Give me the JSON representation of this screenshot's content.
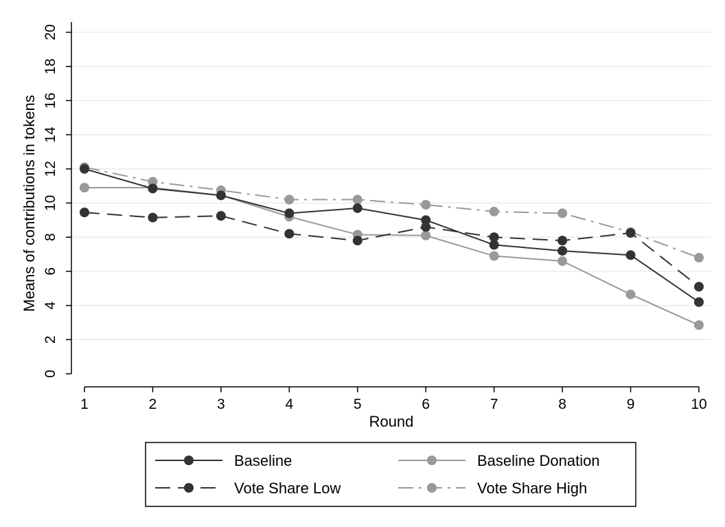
{
  "chart_data": {
    "type": "line",
    "xlabel": "Round",
    "ylabel": "Means of contributions in tokens",
    "x": [
      1,
      2,
      3,
      4,
      5,
      6,
      7,
      8,
      9,
      10
    ],
    "x_ticks": [
      "1",
      "2",
      "3",
      "4",
      "5",
      "6",
      "7",
      "8",
      "9",
      "10"
    ],
    "y_ticks": [
      "0",
      "2",
      "4",
      "6",
      "8",
      "10",
      "12",
      "14",
      "16",
      "18",
      "20"
    ],
    "ylim": [
      0,
      20
    ],
    "xlim": [
      1,
      10
    ],
    "grid": true,
    "legend_position": "bottom",
    "series": [
      {
        "name": "Baseline",
        "color": "#333333",
        "dash": "solid",
        "values": [
          12.0,
          10.85,
          10.45,
          9.4,
          9.7,
          9.0,
          7.55,
          7.2,
          6.95,
          4.2
        ]
      },
      {
        "name": "Baseline Donation",
        "color": "#999999",
        "dash": "solid",
        "values": [
          10.9,
          10.9,
          10.45,
          9.2,
          8.15,
          8.1,
          6.9,
          6.6,
          4.65,
          2.85
        ]
      },
      {
        "name": "Vote Share Low",
        "color": "#333333",
        "dash": "dashed",
        "values": [
          9.45,
          9.15,
          9.25,
          8.2,
          7.8,
          8.6,
          8.0,
          7.8,
          8.25,
          5.1
        ]
      },
      {
        "name": "Vote Share High",
        "color": "#999999",
        "dash": "dashdot",
        "values": [
          12.1,
          11.25,
          10.75,
          10.2,
          10.2,
          9.9,
          9.5,
          9.4,
          8.3,
          6.8
        ]
      }
    ]
  }
}
